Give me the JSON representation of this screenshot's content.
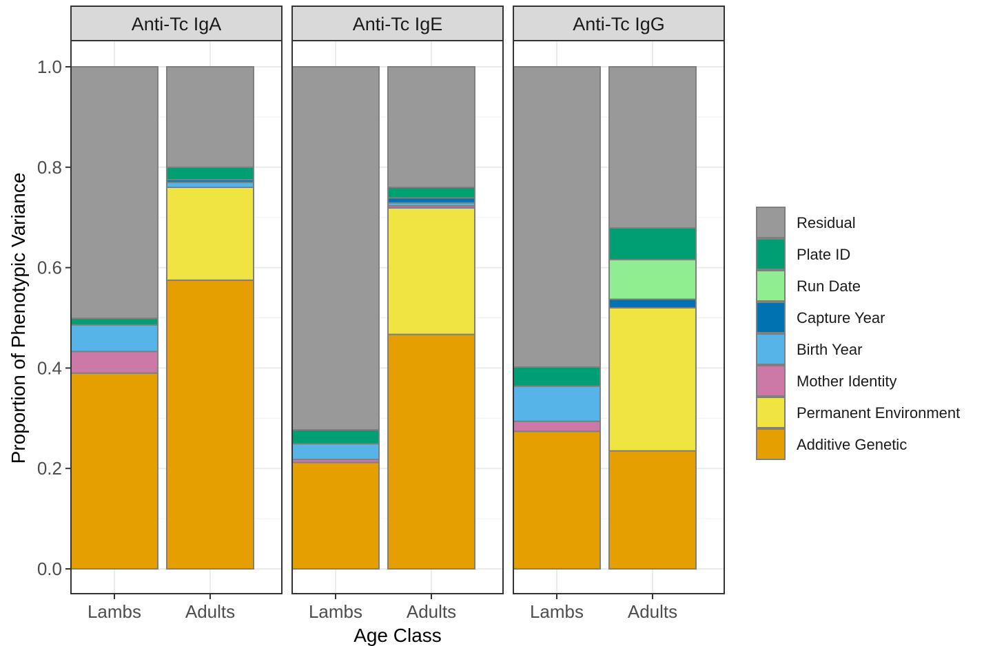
{
  "chart_data": {
    "type": "bar",
    "stacked": true,
    "facets": [
      "Anti-Tc IgA",
      "Anti-Tc IgE",
      "Anti-Tc IgG"
    ],
    "categories": [
      "Lambs",
      "Adults"
    ],
    "xlabel": "Age Class",
    "ylabel": "Proportion of Phenotypic Variance",
    "ylim": [
      0,
      1.05
    ],
    "yticks": [
      "0.0",
      "0.2",
      "0.4",
      "0.6",
      "0.8",
      "1.0"
    ],
    "grid": true,
    "legend_position": "right",
    "series": [
      {
        "name": "Additive Genetic",
        "color": "#E69F00",
        "values": {
          "Anti-Tc IgA": [
            0.39,
            0.575
          ],
          "Anti-Tc IgE": [
            0.212,
            0.467
          ],
          "Anti-Tc IgG": [
            0.274,
            0.235
          ]
        }
      },
      {
        "name": "Permanent Environment",
        "color": "#F0E442",
        "values": {
          "Anti-Tc IgA": [
            0.0,
            0.185
          ],
          "Anti-Tc IgE": [
            0.0,
            0.252
          ],
          "Anti-Tc IgG": [
            0.0,
            0.285
          ]
        }
      },
      {
        "name": "Mother Identity",
        "color": "#CC79A7",
        "values": {
          "Anti-Tc IgA": [
            0.043,
            0.0
          ],
          "Anti-Tc IgE": [
            0.006,
            0.004
          ],
          "Anti-Tc IgG": [
            0.02,
            0.0
          ]
        }
      },
      {
        "name": "Birth Year",
        "color": "#56B4E9",
        "values": {
          "Anti-Tc IgA": [
            0.053,
            0.01
          ],
          "Anti-Tc IgE": [
            0.031,
            0.006
          ],
          "Anti-Tc IgG": [
            0.07,
            0.0
          ]
        }
      },
      {
        "name": "Capture Year",
        "color": "#0072B2",
        "values": {
          "Anti-Tc IgA": [
            0.0,
            0.005
          ],
          "Anti-Tc IgE": [
            0.0,
            0.01
          ],
          "Anti-Tc IgG": [
            0.0,
            0.017
          ]
        }
      },
      {
        "name": "Run Date",
        "color": "#90EE90",
        "values": {
          "Anti-Tc IgA": [
            0.0,
            0.0
          ],
          "Anti-Tc IgE": [
            0.0,
            0.0
          ],
          "Anti-Tc IgG": [
            0.0,
            0.079
          ]
        }
      },
      {
        "name": "Plate ID",
        "color": "#009E73",
        "values": {
          "Anti-Tc IgA": [
            0.013,
            0.025
          ],
          "Anti-Tc IgE": [
            0.028,
            0.021
          ],
          "Anti-Tc IgG": [
            0.038,
            0.063
          ]
        }
      },
      {
        "name": "Residual",
        "color": "#999999",
        "values": {
          "Anti-Tc IgA": [
            0.501,
            0.2
          ],
          "Anti-Tc IgE": [
            0.723,
            0.24
          ],
          "Anti-Tc IgG": [
            0.598,
            0.321
          ]
        }
      }
    ],
    "legend_order": [
      "Residual",
      "Plate ID",
      "Run Date",
      "Capture Year",
      "Birth Year",
      "Mother Identity",
      "Permanent Environment",
      "Additive Genetic"
    ]
  }
}
